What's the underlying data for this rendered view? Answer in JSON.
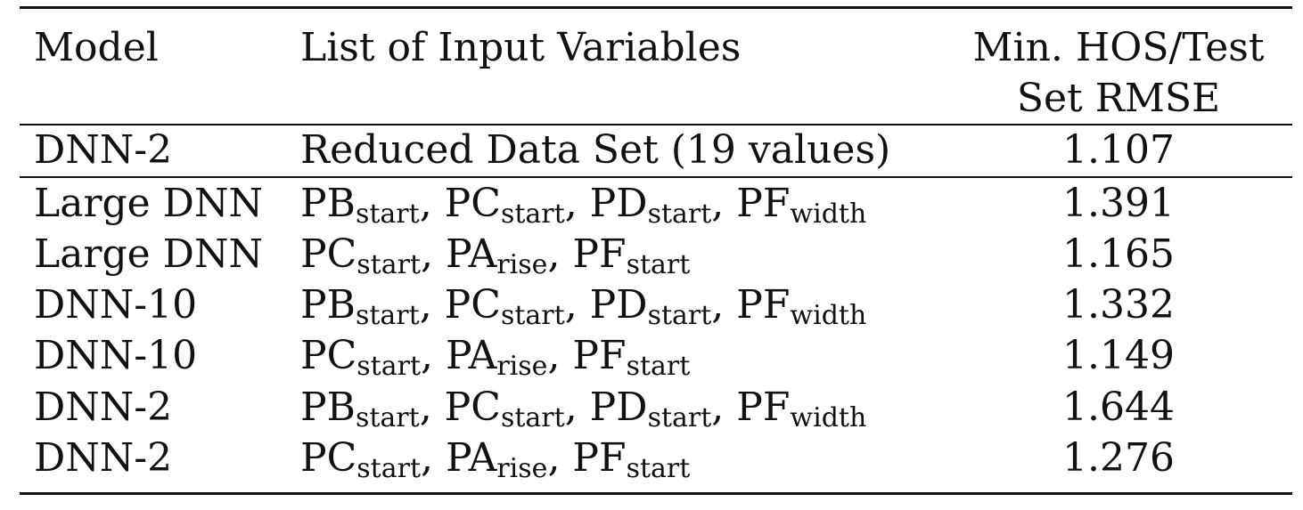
{
  "table": {
    "headers": {
      "model": "Model",
      "input_variables": "List of Input Variables",
      "rmse_line1": "Min. HOS/Test",
      "rmse_line2": "Set RMSE"
    },
    "rows": [
      {
        "model": "DNN-2",
        "variables_text": "Reduced Data Set (19 values)",
        "rmse": "1.107"
      },
      {
        "model": "Large DNN",
        "variables": [
          {
            "base": "PB",
            "sub": "start"
          },
          {
            "base": "PC",
            "sub": "start"
          },
          {
            "base": "PD",
            "sub": "start"
          },
          {
            "base": "PF",
            "sub": "width"
          }
        ],
        "rmse": "1.391"
      },
      {
        "model": "Large DNN",
        "variables": [
          {
            "base": "PC",
            "sub": "start"
          },
          {
            "base": "PA",
            "sub": "rise"
          },
          {
            "base": "PF",
            "sub": "start"
          }
        ],
        "rmse": "1.165"
      },
      {
        "model": "DNN-10",
        "variables": [
          {
            "base": "PB",
            "sub": "start"
          },
          {
            "base": "PC",
            "sub": "start"
          },
          {
            "base": "PD",
            "sub": "start"
          },
          {
            "base": "PF",
            "sub": "width"
          }
        ],
        "rmse": "1.332"
      },
      {
        "model": "DNN-10",
        "variables": [
          {
            "base": "PC",
            "sub": "start"
          },
          {
            "base": "PA",
            "sub": "rise"
          },
          {
            "base": "PF",
            "sub": "start"
          }
        ],
        "rmse": "1.149"
      },
      {
        "model": "DNN-2",
        "variables": [
          {
            "base": "PB",
            "sub": "start"
          },
          {
            "base": "PC",
            "sub": "start"
          },
          {
            "base": "PD",
            "sub": "start"
          },
          {
            "base": "PF",
            "sub": "width"
          }
        ],
        "rmse": "1.644"
      },
      {
        "model": "DNN-2",
        "variables": [
          {
            "base": "PC",
            "sub": "start"
          },
          {
            "base": "PA",
            "sub": "rise"
          },
          {
            "base": "PF",
            "sub": "start"
          }
        ],
        "rmse": "1.276"
      }
    ]
  }
}
